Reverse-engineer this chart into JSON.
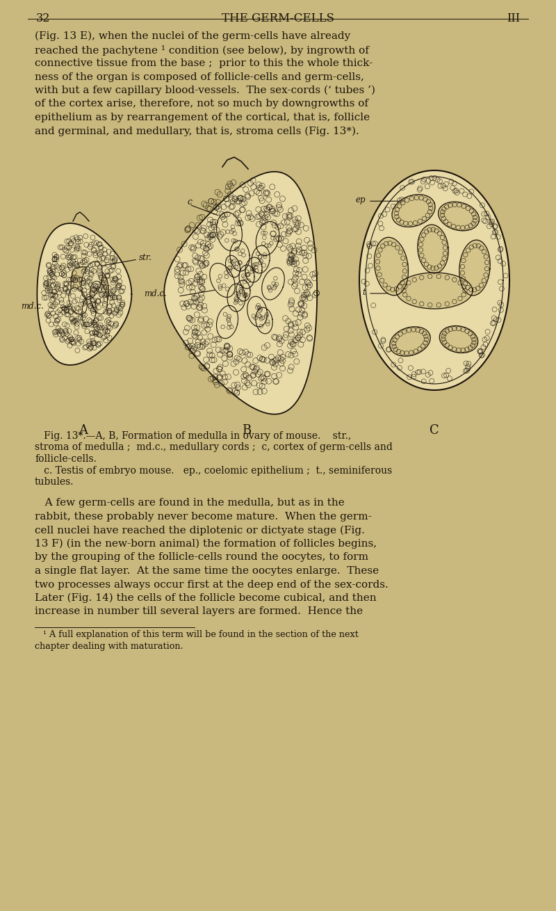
{
  "bg_color": "#c9b97e",
  "text_color": "#1a1209",
  "page_number_left": "32",
  "page_number_right": "III",
  "page_header": "THE GERM-CELLS",
  "para1_lines": [
    "(Fig. 13 E), when the nuclei of the germ-cells have already",
    "reached the pachytene ¹ condition (see below), by ingrowth of",
    "connective tissue from the base ;  prior to this the whole thick-",
    "ness of the organ is composed of follicle-cells and germ-cells,",
    "with but a few capillary blood-vessels.  The sex-cords (‘ tubes ’)",
    "of the cortex arise, therefore, not so much by downgrowths of",
    "epithelium as by rearrangement of the cortical, that is, follicle",
    "and germinal, and medullary, that is, stroma cells (Fig. 13*)."
  ],
  "cap_lines": [
    "   Fig. 13*.—A, B, Formation of medulla in ovary of mouse.    str.,",
    "stroma of medulla ;  md.c., medullary cords ;  c, cortex of germ-cells and",
    "follicle-cells.",
    "   c. Testis of embryo mouse.   ep., coelomic epithelium ;  t., seminiferous",
    "tubules."
  ],
  "para2_lines": [
    "   A few germ-cells are found in the medulla, but as in the",
    "rabbit, these probably never become mature.  When the germ-",
    "cell nuclei have reached the diplotenic or dictyate stage (Fig.",
    "13 F) (in the new-born animal) the formation of follicles begins,",
    "by the grouping of the follicle-cells round the oocytes, to form",
    "a single flat layer.  At the same time the oocytes enlarge.  These",
    "two processes always occur first at the deep end of the sex-cords.",
    "Later (Fig. 14) the cells of the follicle become cubical, and then",
    "increase in number till several layers are formed.  Hence the"
  ],
  "fn_lines": [
    "   ¹ A full explanation of this term will be found in the section of the next",
    "chapter dealing with maturation."
  ],
  "draw_color": "#1a1209",
  "fill_light": "#e8dba8",
  "fill_med": "#d4c48a",
  "fill_dark": "#b8a870"
}
